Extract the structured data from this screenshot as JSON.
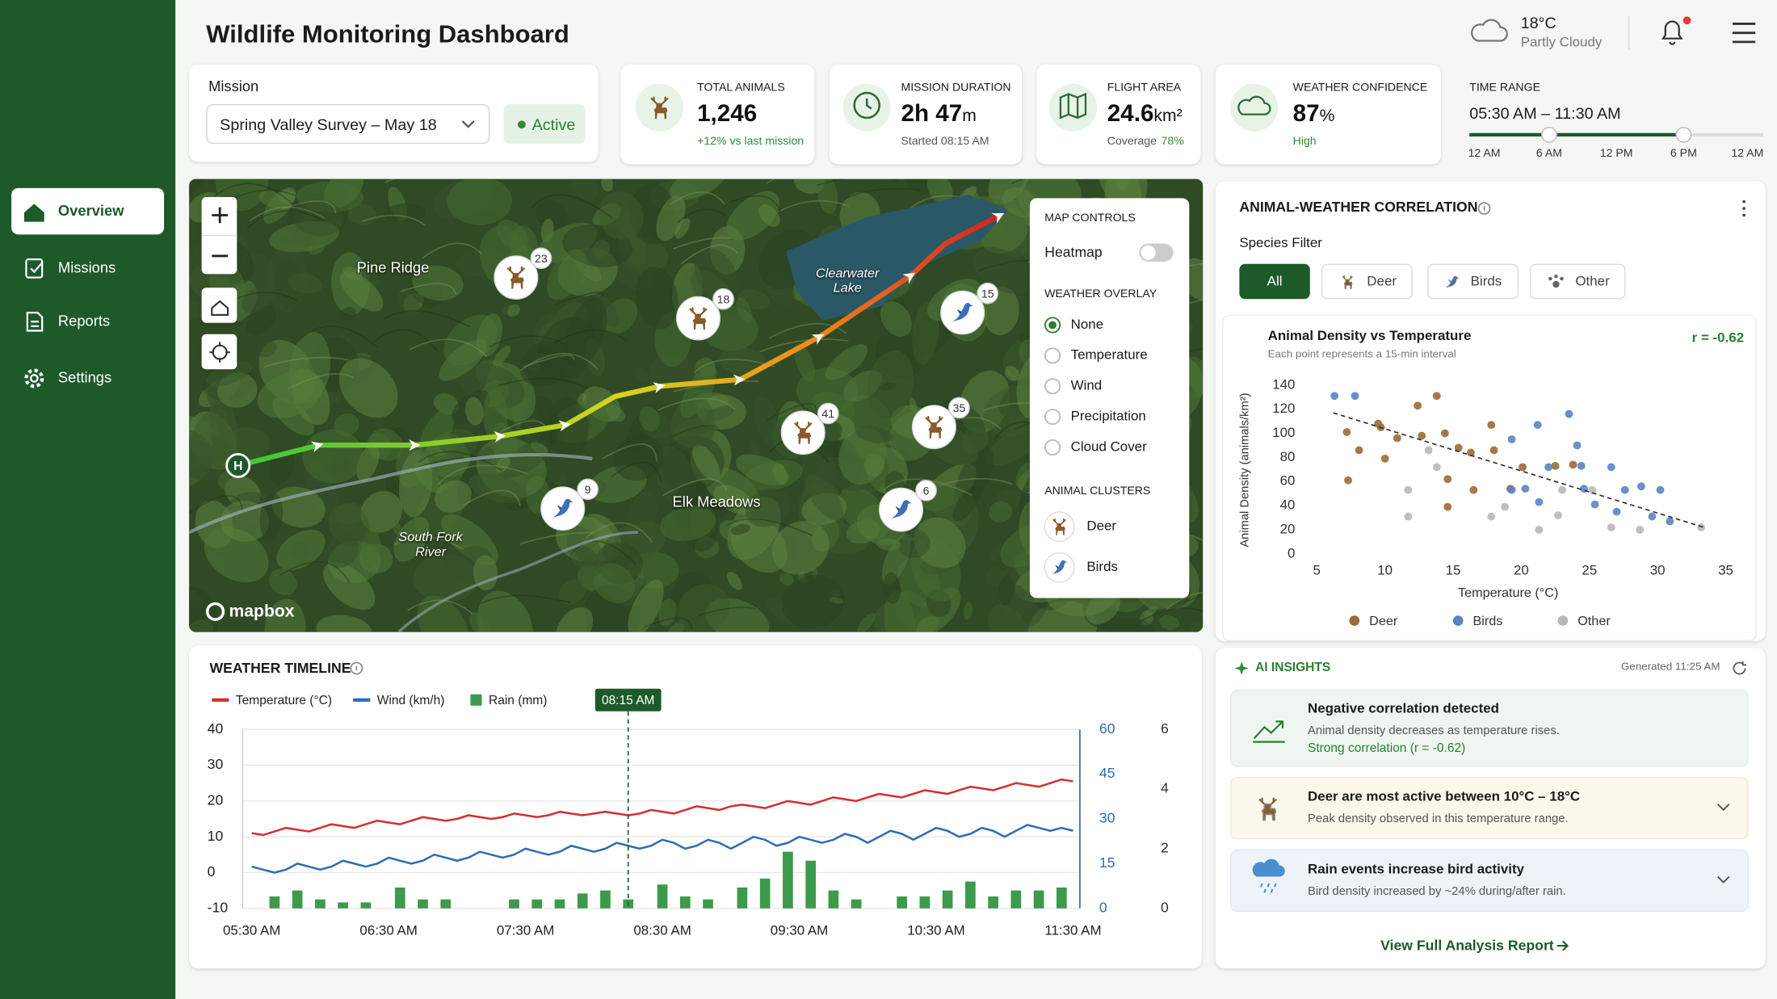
{
  "header": {
    "title": "Wildlife Monitoring Dashboard",
    "temperature": "18°C",
    "condition": "Partly Cloudy"
  },
  "nav": [
    "Overview",
    "Missions",
    "Reports",
    "Settings"
  ],
  "mission": {
    "label": "Mission",
    "selected": "Spring Valley Survey – May 18",
    "status": "Active"
  },
  "stats": [
    {
      "label": "TOTAL ANIMALS",
      "value": "1,246",
      "note": "+12% vs last mission"
    },
    {
      "label": "MISSION DURATION",
      "value": "2h 47",
      "unit": "m",
      "note": "Started 08:15 AM"
    },
    {
      "label": "FLIGHT AREA",
      "value": "24.6",
      "unit": "km²",
      "note": "Coverage",
      "note_value": "78%"
    },
    {
      "label": "WEATHER CONFIDENCE",
      "value": "87",
      "unit": "%",
      "note": "High"
    }
  ],
  "time_range": {
    "label": "TIME RANGE",
    "value": "05:30 AM – 11:30 AM",
    "ticks": [
      "12 AM",
      "6 AM",
      "12 PM",
      "6 PM",
      "12 AM"
    ]
  },
  "map": {
    "places": [
      "Pine Ridge",
      "Clearwater Lake",
      "Elk Meadows",
      "South Fork River"
    ],
    "markers": [
      {
        "species": "Deer",
        "count": 23
      },
      {
        "species": "Deer",
        "count": 18
      },
      {
        "species": "Birds",
        "count": 15
      },
      {
        "species": "Deer",
        "count": 41
      },
      {
        "species": "Deer",
        "count": 35
      },
      {
        "species": "Birds",
        "count": 9
      },
      {
        "species": "Birds",
        "count": 6
      }
    ],
    "home": "H",
    "attribution": "mapbox",
    "controls": {
      "title": "MAP CONTROLS",
      "heatmap": "Heatmap",
      "heatmap_on": false,
      "overlay_title": "WEATHER OVERLAY",
      "overlays": [
        "None",
        "Temperature",
        "Wind",
        "Precipitation",
        "Cloud Cover"
      ],
      "selected": "None",
      "clusters_title": "ANIMAL CLUSTERS",
      "clusters": [
        "Deer",
        "Birds"
      ]
    }
  },
  "correlation": {
    "title": "ANIMAL-WEATHER CORRELATION",
    "filter_label": "Species Filter",
    "filters": [
      "All",
      "Deer",
      "Birds",
      "Other"
    ],
    "selected": "All"
  },
  "insights": {
    "title": "AI INSIGHTS",
    "generated": "Generated 11:25 AM",
    "items": [
      {
        "title": "Negative correlation detected",
        "text": "Animal density decreases as temperature rises.",
        "detail": "Strong correlation (r = -0.62)"
      },
      {
        "title": "Deer are most active between 10°C – 18°C",
        "text": "Peak density observed in this temperature range."
      },
      {
        "title": "Rain events increase bird activity",
        "text": "Bird density increased by ~24% during/after rain."
      }
    ],
    "link": "View Full Analysis Report"
  },
  "chart_data": [
    {
      "type": "scatter",
      "title": "Animal Density vs Temperature",
      "subtitle": "Each point represents a 15-min interval",
      "annotation": "r = -0.62",
      "xlabel": "Temperature (°C)",
      "ylabel": "Animal Density (animals/km²)",
      "xlim": [
        5,
        35
      ],
      "xticks": [
        5,
        10,
        15,
        20,
        25,
        30,
        35
      ],
      "ylim": [
        0,
        140
      ],
      "yticks": [
        0,
        20,
        40,
        60,
        80,
        100,
        120,
        140
      ],
      "series": [
        {
          "name": "Deer",
          "color": "#9c6a35",
          "x": [
            7.2,
            8.1,
            7.3,
            9.5,
            9.7,
            10.9,
            10,
            12.4,
            13.8,
            12.7,
            14.4,
            15.4,
            16.3,
            17.8,
            18,
            14.6,
            16.5,
            14.6,
            22.5,
            20.1,
            23.8,
            19.2
          ],
          "y": [
            101,
            86,
            61,
            108,
            105,
            96,
            79,
            123,
            131,
            98,
            100,
            88,
            84,
            107,
            86,
            62,
            53,
            39,
            73,
            72,
            74,
            54
          ]
        },
        {
          "name": "Birds",
          "color": "#5b84c4",
          "x": [
            6.3,
            7.8,
            19.3,
            21.2,
            23.5,
            24.1,
            26.6,
            19.3,
            20.3,
            22,
            24.6,
            25.4,
            27.6,
            28.8,
            30.2,
            29.6,
            30.9,
            24.4,
            21.3,
            27
          ],
          "y": [
            131,
            131,
            95,
            107,
            116,
            90,
            72,
            53,
            54,
            72,
            54,
            41,
            53,
            56,
            53,
            31,
            27,
            73,
            43,
            35
          ]
        },
        {
          "name": "Other",
          "color": "#b8b8b8",
          "x": [
            11.7,
            11.7,
            17.8,
            18.8,
            21.3,
            23,
            25.2,
            26.6,
            28.7,
            33.2,
            13.2,
            13.8,
            22.7
          ],
          "y": [
            53,
            31,
            31,
            39,
            20,
            53,
            53,
            22,
            20,
            22,
            86,
            72,
            32
          ]
        }
      ],
      "trendline": {
        "x": [
          6.2,
          33.4
        ],
        "y": [
          117,
          22
        ]
      }
    },
    {
      "type": "line",
      "title": "WEATHER TIMELINE",
      "x": [
        "05:30 AM",
        "05:35 AM",
        "05:40 AM",
        "05:45 AM",
        "05:50 AM",
        "05:55 AM",
        "06:00 AM",
        "06:05 AM",
        "06:10 AM",
        "06:15 AM",
        "06:20 AM",
        "06:25 AM",
        "06:30 AM",
        "06:35 AM",
        "06:40 AM",
        "06:45 AM",
        "06:50 AM",
        "06:55 AM",
        "07:00 AM",
        "07:05 AM",
        "07:10 AM",
        "07:15 AM",
        "07:20 AM",
        "07:25 AM",
        "07:30 AM",
        "07:35 AM",
        "07:40 AM",
        "07:45 AM",
        "07:50 AM",
        "07:55 AM",
        "08:00 AM",
        "08:05 AM",
        "08:10 AM",
        "08:15 AM",
        "08:20 AM",
        "08:25 AM",
        "08:30 AM",
        "08:35 AM",
        "08:40 AM",
        "08:45 AM",
        "08:50 AM",
        "08:55 AM",
        "09:00 AM",
        "09:05 AM",
        "09:10 AM",
        "09:15 AM",
        "09:20 AM",
        "09:25 AM",
        "09:30 AM",
        "09:35 AM",
        "09:40 AM",
        "09:45 AM",
        "09:50 AM",
        "09:55 AM",
        "10:00 AM",
        "10:05 AM",
        "10:10 AM",
        "10:15 AM",
        "10:20 AM",
        "10:25 AM",
        "10:30 AM",
        "10:35 AM",
        "10:40 AM",
        "10:45 AM",
        "10:50 AM",
        "10:55 AM",
        "11:00 AM",
        "11:05 AM",
        "11:10 AM",
        "11:15 AM",
        "11:20 AM",
        "11:25 AM",
        "11:30 AM"
      ],
      "xticks": [
        "05:30 AM",
        "06:30 AM",
        "07:30 AM",
        "08:30 AM",
        "09:30 AM",
        "10:30 AM",
        "11:30 AM"
      ],
      "ylim": [
        -10,
        40
      ],
      "yticks": [
        -10,
        0,
        10,
        20,
        30,
        40
      ],
      "y2lim": [
        0,
        60
      ],
      "y2ticks": [
        0,
        15,
        30,
        45,
        60
      ],
      "y3lim": [
        0,
        6
      ],
      "y3ticks": [
        0,
        2,
        4,
        6
      ],
      "grid": true,
      "marker": "08:15 AM",
      "series": [
        {
          "name": "Temperature (°C)",
          "color": "#d32f2f",
          "values": [
            11,
            10.5,
            11.5,
            12.5,
            12,
            11.5,
            12.5,
            13.5,
            13,
            12.5,
            13.5,
            14.5,
            14,
            13.5,
            14.5,
            15.5,
            15,
            14.5,
            15,
            16,
            15.5,
            15,
            15.5,
            16.5,
            16,
            15.5,
            16,
            17,
            16.5,
            16,
            16.5,
            17,
            16.5,
            16,
            16.5,
            17.5,
            17,
            16.5,
            17.5,
            18.5,
            18,
            17.5,
            18.5,
            19,
            18.5,
            18,
            19,
            20,
            19.5,
            19,
            20,
            21,
            20.5,
            20,
            21,
            22,
            21.5,
            21,
            22,
            23,
            22.5,
            22,
            23,
            24,
            23.5,
            23,
            24,
            25,
            24.5,
            24,
            25,
            26,
            25.5
          ]
        },
        {
          "name": "Wind (km/h)",
          "color": "#2f6db5",
          "axis": "y2",
          "values": [
            14,
            13,
            12,
            13,
            15,
            14,
            13,
            14,
            16,
            15,
            14,
            15,
            17,
            16,
            15,
            16,
            18,
            17,
            16,
            17,
            19,
            18,
            17,
            18,
            20,
            19,
            18,
            19,
            21,
            20,
            19,
            20,
            22,
            21,
            20,
            21,
            23,
            22,
            20,
            21,
            23,
            22,
            20,
            22,
            24,
            23,
            21,
            22,
            24,
            23,
            22,
            23,
            25,
            24,
            22,
            24,
            26,
            25,
            23,
            25,
            27,
            26,
            24,
            25,
            27,
            26,
            24,
            26,
            28,
            27,
            26,
            27,
            26
          ]
        },
        {
          "name": "Rain (mm)",
          "color": "#3d9a4c",
          "axis": "y3",
          "kind": "bar",
          "values": [
            0,
            0,
            0.4,
            0,
            0.6,
            0,
            0.3,
            0,
            0.2,
            0,
            0.2,
            0,
            0,
            0.7,
            0,
            0.3,
            0,
            0.3,
            0,
            0,
            0,
            0,
            0,
            0.3,
            0,
            0.3,
            0,
            0.3,
            0,
            0.5,
            0,
            0.6,
            0,
            0.3,
            0,
            0,
            0.8,
            0,
            0.4,
            0,
            0.3,
            0,
            0,
            0.7,
            0,
            1.0,
            0,
            1.9,
            0,
            1.6,
            0,
            0.6,
            0,
            0.3,
            0,
            0,
            0,
            0.4,
            0,
            0.4,
            0,
            0.6,
            0,
            0.9,
            0,
            0.4,
            0,
            0.6,
            0,
            0.6,
            0,
            0.7,
            0
          ]
        }
      ]
    }
  ]
}
